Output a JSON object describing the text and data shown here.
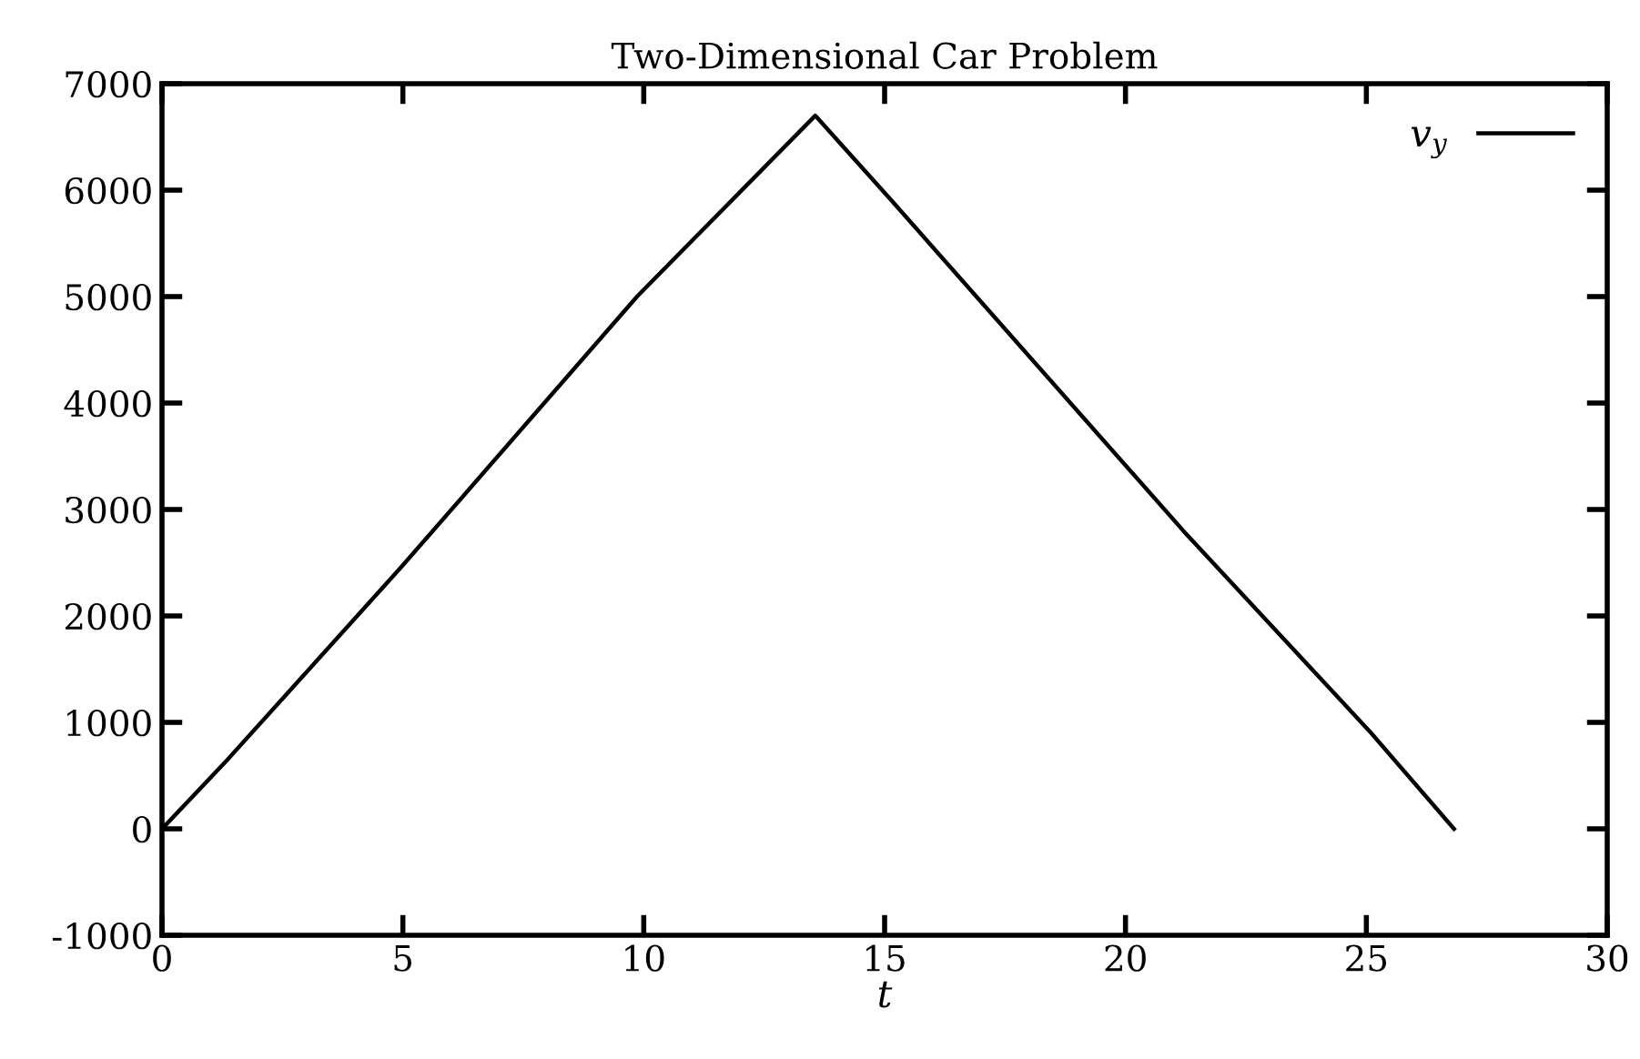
{
  "chart_data": {
    "type": "line",
    "title": "Two-Dimensional Car Problem",
    "xlabel": "t",
    "xlim": [
      0,
      30
    ],
    "xticks": [
      0,
      5,
      10,
      15,
      20,
      25,
      30
    ],
    "ylim": [
      -1000,
      7000
    ],
    "yticks": [
      -1000,
      0,
      1000,
      2000,
      3000,
      4000,
      5000,
      6000,
      7000
    ],
    "grid": false,
    "legend": "top right",
    "series": [
      {
        "name": "v$_{y}$",
        "color": "#000000",
        "x": [
          0,
          1.36,
          4.95,
          9.86,
          13.56,
          15.15,
          21.2,
          25.1,
          26.82
        ],
        "values": [
          0,
          650,
          2450,
          5000,
          6700,
          5900,
          2800,
          900,
          0
        ]
      }
    ]
  }
}
